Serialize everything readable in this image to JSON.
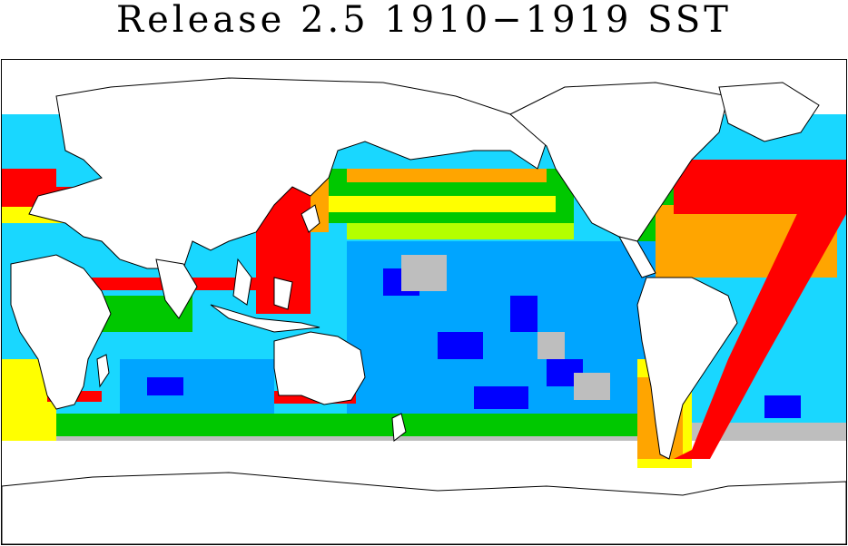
{
  "title": "Release 2.5 1910−1919 SST",
  "map": {
    "projection": "equirectangular",
    "view": "global, Pacific-centred",
    "colors": {
      "missing_gray": "#bebebe",
      "blue": "#0000ff",
      "light_blue": "#00a5ff",
      "cyan": "#00e0ff",
      "green": "#00c800",
      "yellow_green": "#b4ff00",
      "yellow": "#ffff00",
      "orange": "#ffa500",
      "red": "#ff0000",
      "land": "#ffffff",
      "coastline": "#000000"
    }
  }
}
